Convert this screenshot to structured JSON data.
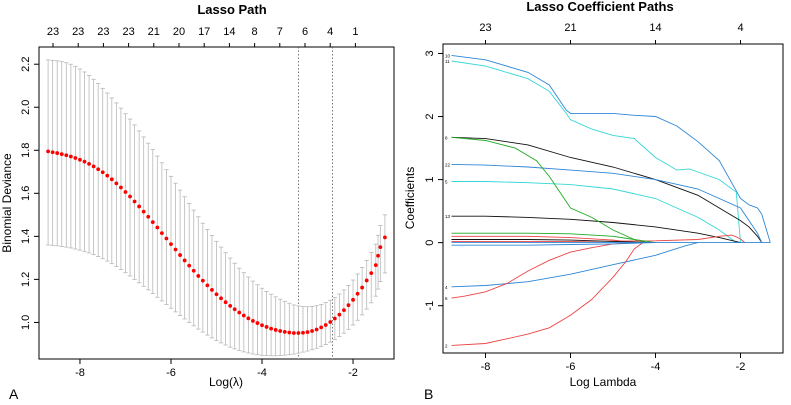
{
  "panels": {
    "a_letter": "A",
    "b_letter": "B"
  },
  "chart_data": [
    {
      "type": "scatter",
      "title": "Lasso Path",
      "xlabel": "Log(λ)",
      "ylabel": "Binomial Deviance",
      "xlim": [
        -8.9,
        -1.1
      ],
      "ylim": [
        0.83,
        2.28
      ],
      "xticks": [
        -8,
        -6,
        -4,
        -2
      ],
      "xtick_labels": [
        "-8",
        "-6",
        "-4",
        "-2"
      ],
      "yticks": [
        1.0,
        1.2,
        1.4,
        1.6,
        1.8,
        2.0,
        2.2
      ],
      "ytick_labels": [
        "1.0",
        "1.2",
        "1.4",
        "1.6",
        "1.8",
        "2.0",
        "2.2"
      ],
      "top_axis_labels": [
        "23",
        "23",
        "23",
        "23",
        "21",
        "20",
        "17",
        "14",
        "8",
        "7",
        "6",
        "4",
        "1"
      ],
      "top_axis_x": [
        -8.65,
        -7.85,
        -7.05,
        -6.3,
        -5.55,
        -4.85,
        -4.05,
        -3.35,
        -2.65,
        -2.0,
        -1.35,
        -0.75,
        -0.15
      ],
      "vlines": [
        -3.2,
        -2.45
      ],
      "point_color": "#ff0000",
      "errorbar_color": "#b8b8b8",
      "points": [
        {
          "x": -8.7,
          "y": 1.795,
          "lo": 1.36,
          "hi": 2.22
        },
        {
          "x": -8.6,
          "y": 1.791,
          "lo": 1.358,
          "hi": 2.218
        },
        {
          "x": -8.5,
          "y": 1.787,
          "lo": 1.356,
          "hi": 2.216
        },
        {
          "x": -8.4,
          "y": 1.782,
          "lo": 1.353,
          "hi": 2.212
        },
        {
          "x": -8.3,
          "y": 1.777,
          "lo": 1.35,
          "hi": 2.207
        },
        {
          "x": -8.2,
          "y": 1.771,
          "lo": 1.346,
          "hi": 2.2
        },
        {
          "x": -8.1,
          "y": 1.764,
          "lo": 1.341,
          "hi": 2.19
        },
        {
          "x": -8.0,
          "y": 1.756,
          "lo": 1.336,
          "hi": 2.178
        },
        {
          "x": -7.9,
          "y": 1.747,
          "lo": 1.33,
          "hi": 2.164
        },
        {
          "x": -7.8,
          "y": 1.737,
          "lo": 1.323,
          "hi": 2.148
        },
        {
          "x": -7.7,
          "y": 1.725,
          "lo": 1.315,
          "hi": 2.13
        },
        {
          "x": -7.6,
          "y": 1.712,
          "lo": 1.306,
          "hi": 2.11
        },
        {
          "x": -7.5,
          "y": 1.698,
          "lo": 1.296,
          "hi": 2.088
        },
        {
          "x": -7.4,
          "y": 1.682,
          "lo": 1.285,
          "hi": 2.066
        },
        {
          "x": -7.3,
          "y": 1.665,
          "lo": 1.273,
          "hi": 2.043
        },
        {
          "x": -7.2,
          "y": 1.646,
          "lo": 1.26,
          "hi": 2.02
        },
        {
          "x": -7.1,
          "y": 1.627,
          "lo": 1.246,
          "hi": 1.996
        },
        {
          "x": -7.0,
          "y": 1.606,
          "lo": 1.231,
          "hi": 1.97
        },
        {
          "x": -6.9,
          "y": 1.585,
          "lo": 1.216,
          "hi": 1.945
        },
        {
          "x": -6.8,
          "y": 1.562,
          "lo": 1.2,
          "hi": 1.918
        },
        {
          "x": -6.7,
          "y": 1.539,
          "lo": 1.184,
          "hi": 1.89
        },
        {
          "x": -6.6,
          "y": 1.515,
          "lo": 1.168,
          "hi": 1.862
        },
        {
          "x": -6.5,
          "y": 1.491,
          "lo": 1.151,
          "hi": 1.833
        },
        {
          "x": -6.4,
          "y": 1.466,
          "lo": 1.134,
          "hi": 1.803
        },
        {
          "x": -6.3,
          "y": 1.441,
          "lo": 1.117,
          "hi": 1.773
        },
        {
          "x": -6.2,
          "y": 1.415,
          "lo": 1.1,
          "hi": 1.742
        },
        {
          "x": -6.1,
          "y": 1.39,
          "lo": 1.083,
          "hi": 1.71
        },
        {
          "x": -6.0,
          "y": 1.364,
          "lo": 1.066,
          "hi": 1.679
        },
        {
          "x": -5.9,
          "y": 1.339,
          "lo": 1.049,
          "hi": 1.647
        },
        {
          "x": -5.8,
          "y": 1.313,
          "lo": 1.032,
          "hi": 1.615
        },
        {
          "x": -5.7,
          "y": 1.288,
          "lo": 1.016,
          "hi": 1.584
        },
        {
          "x": -5.6,
          "y": 1.264,
          "lo": 1.0,
          "hi": 1.553
        },
        {
          "x": -5.5,
          "y": 1.24,
          "lo": 0.984,
          "hi": 1.522
        },
        {
          "x": -5.4,
          "y": 1.216,
          "lo": 0.969,
          "hi": 1.491
        },
        {
          "x": -5.3,
          "y": 1.194,
          "lo": 0.955,
          "hi": 1.461
        },
        {
          "x": -5.2,
          "y": 1.172,
          "lo": 0.941,
          "hi": 1.432
        },
        {
          "x": -5.1,
          "y": 1.151,
          "lo": 0.928,
          "hi": 1.404
        },
        {
          "x": -5.0,
          "y": 1.131,
          "lo": 0.916,
          "hi": 1.377
        },
        {
          "x": -4.9,
          "y": 1.112,
          "lo": 0.905,
          "hi": 1.35
        },
        {
          "x": -4.8,
          "y": 1.094,
          "lo": 0.895,
          "hi": 1.324
        },
        {
          "x": -4.7,
          "y": 1.077,
          "lo": 0.885,
          "hi": 1.299
        },
        {
          "x": -4.6,
          "y": 1.061,
          "lo": 0.877,
          "hi": 1.275
        },
        {
          "x": -4.5,
          "y": 1.046,
          "lo": 0.87,
          "hi": 1.252
        },
        {
          "x": -4.4,
          "y": 1.032,
          "lo": 0.863,
          "hi": 1.231
        },
        {
          "x": -4.3,
          "y": 1.019,
          "lo": 0.858,
          "hi": 1.211
        },
        {
          "x": -4.2,
          "y": 1.007,
          "lo": 0.853,
          "hi": 1.192
        },
        {
          "x": -4.1,
          "y": 0.997,
          "lo": 0.85,
          "hi": 1.175
        },
        {
          "x": -4.0,
          "y": 0.987,
          "lo": 0.847,
          "hi": 1.159
        },
        {
          "x": -3.9,
          "y": 0.979,
          "lo": 0.846,
          "hi": 1.144
        },
        {
          "x": -3.8,
          "y": 0.971,
          "lo": 0.845,
          "hi": 1.131
        },
        {
          "x": -3.7,
          "y": 0.965,
          "lo": 0.845,
          "hi": 1.119
        },
        {
          "x": -3.6,
          "y": 0.96,
          "lo": 0.846,
          "hi": 1.108
        },
        {
          "x": -3.5,
          "y": 0.956,
          "lo": 0.848,
          "hi": 1.098
        },
        {
          "x": -3.4,
          "y": 0.953,
          "lo": 0.85,
          "hi": 1.089
        },
        {
          "x": -3.3,
          "y": 0.951,
          "lo": 0.853,
          "hi": 1.081
        },
        {
          "x": -3.2,
          "y": 0.951,
          "lo": 0.857,
          "hi": 1.077
        },
        {
          "x": -3.1,
          "y": 0.952,
          "lo": 0.862,
          "hi": 1.074
        },
        {
          "x": -3.0,
          "y": 0.955,
          "lo": 0.867,
          "hi": 1.073
        },
        {
          "x": -2.9,
          "y": 0.96,
          "lo": 0.873,
          "hi": 1.074
        },
        {
          "x": -2.8,
          "y": 0.967,
          "lo": 0.88,
          "hi": 1.078
        },
        {
          "x": -2.7,
          "y": 0.977,
          "lo": 0.888,
          "hi": 1.084
        },
        {
          "x": -2.6,
          "y": 0.988,
          "lo": 0.897,
          "hi": 1.092
        },
        {
          "x": -2.5,
          "y": 1.002,
          "lo": 0.908,
          "hi": 1.103
        },
        {
          "x": -2.4,
          "y": 1.018,
          "lo": 0.92,
          "hi": 1.116
        },
        {
          "x": -2.3,
          "y": 1.036,
          "lo": 0.934,
          "hi": 1.132
        },
        {
          "x": -2.2,
          "y": 1.057,
          "lo": 0.95,
          "hi": 1.151
        },
        {
          "x": -2.1,
          "y": 1.08,
          "lo": 0.968,
          "hi": 1.172
        },
        {
          "x": -2.0,
          "y": 1.105,
          "lo": 0.988,
          "hi": 1.197
        },
        {
          "x": -1.9,
          "y": 1.133,
          "lo": 1.01,
          "hi": 1.225
        },
        {
          "x": -1.8,
          "y": 1.162,
          "lo": 1.035,
          "hi": 1.255
        },
        {
          "x": -1.7,
          "y": 1.195,
          "lo": 1.062,
          "hi": 1.288
        },
        {
          "x": -1.6,
          "y": 1.229,
          "lo": 1.091,
          "hi": 1.325
        },
        {
          "x": -1.5,
          "y": 1.266,
          "lo": 1.122,
          "hi": 1.364
        },
        {
          "x": -1.45,
          "y": 1.31,
          "lo": 1.155,
          "hi": 1.405
        },
        {
          "x": -1.4,
          "y": 1.35,
          "lo": 1.19,
          "hi": 1.45
        },
        {
          "x": -1.3,
          "y": 1.395,
          "lo": 1.23,
          "hi": 1.5
        }
      ]
    },
    {
      "type": "line",
      "title": "Lasso Coefficient Paths",
      "xlabel": "Log Lambda",
      "ylabel": "Coefficients",
      "xlim": [
        -9.0,
        -1.0
      ],
      "ylim": [
        -1.75,
        3.15
      ],
      "xticks": [
        -8,
        -6,
        -4,
        -2
      ],
      "xtick_labels": [
        "-8",
        "-6",
        "-4",
        "-2"
      ],
      "yticks": [
        -1,
        0,
        1,
        2,
        3
      ],
      "ytick_labels": [
        "-1",
        "0",
        "1",
        "2",
        "3"
      ],
      "top_axis_labels": [
        "23",
        "21",
        "14",
        "4"
      ],
      "top_axis_x": [
        -8.0,
        -6.0,
        -4.0,
        -2.0
      ],
      "series": [
        {
          "name": "10",
          "color": "#2e86d6",
          "x": [
            -8.8,
            -8,
            -7,
            -6.5,
            -6.1,
            -6,
            -5,
            -4.5,
            -4,
            -3.5,
            -3,
            -2.5,
            -2,
            -1.8,
            -1.6,
            -1.5,
            -1.3
          ],
          "y": [
            2.97,
            2.9,
            2.7,
            2.5,
            2.1,
            2.05,
            2.05,
            2.02,
            2.0,
            1.85,
            1.6,
            1.3,
            0.7,
            0.6,
            0.55,
            0.45,
            0.0
          ]
        },
        {
          "name": "11",
          "color": "#34d6d6",
          "x": [
            -8.8,
            -8,
            -7,
            -6.5,
            -6.1,
            -6,
            -5.5,
            -5,
            -4.5,
            -4,
            -3.5,
            -3.2,
            -3,
            -2.5,
            -2.1,
            -2
          ],
          "y": [
            2.88,
            2.8,
            2.6,
            2.4,
            2.05,
            1.95,
            1.8,
            1.7,
            1.65,
            1.35,
            1.15,
            1.17,
            1.12,
            1.0,
            0.8,
            0.0
          ]
        },
        {
          "name": "8",
          "color": "#111111",
          "x": [
            -8.8,
            -8,
            -7,
            -6,
            -5,
            -4,
            -3,
            -2.5,
            -2,
            -1.8,
            -1.6,
            -1.5
          ],
          "y": [
            1.67,
            1.65,
            1.55,
            1.35,
            1.2,
            1.0,
            0.75,
            0.55,
            0.35,
            0.25,
            0.1,
            0.0
          ]
        },
        {
          "name": "22",
          "color": "#2e86d6",
          "x": [
            -8.8,
            -8,
            -7,
            -6,
            -5,
            -4,
            -3,
            -2,
            -1.6,
            -1.5
          ],
          "y": [
            1.24,
            1.23,
            1.2,
            1.15,
            1.1,
            1.0,
            0.85,
            0.55,
            0.15,
            0.0
          ]
        },
        {
          "name": "5",
          "color": "#34d6d6",
          "x": [
            -8.8,
            -8,
            -7,
            -6,
            -5,
            -4,
            -3.5,
            -3,
            -2.5,
            -2.1
          ],
          "y": [
            0.97,
            0.97,
            0.95,
            0.92,
            0.85,
            0.7,
            0.55,
            0.4,
            0.2,
            0.0
          ]
        },
        {
          "name": "13",
          "color": "#111111",
          "x": [
            -8.8,
            -8,
            -7,
            -6,
            -5,
            -4,
            -3,
            -2.5,
            -2
          ],
          "y": [
            0.42,
            0.42,
            0.4,
            0.37,
            0.32,
            0.25,
            0.15,
            0.08,
            0.0
          ]
        },
        {
          "name": "",
          "color": "#22aa22",
          "x": [
            -8.8,
            -8,
            -7.3,
            -6.8,
            -6.5,
            -6.2,
            -6,
            -5.5,
            -5,
            -4.5,
            -4.2
          ],
          "y": [
            1.67,
            1.62,
            1.5,
            1.3,
            1.05,
            0.75,
            0.55,
            0.4,
            0.2,
            0.05,
            0.0
          ]
        },
        {
          "name": "4",
          "color": "#2e86d6",
          "x": [
            -8.8,
            -8,
            -7,
            -6,
            -5,
            -4,
            -3.3,
            -3
          ],
          "y": [
            -0.7,
            -0.68,
            -0.62,
            -0.5,
            -0.35,
            -0.2,
            -0.05,
            0.0
          ]
        },
        {
          "name": "6",
          "color": "#ee4444",
          "x": [
            -8.8,
            -8.5,
            -8,
            -7.5,
            -7,
            -6.5,
            -6,
            -5.5,
            -5,
            -4.5
          ],
          "y": [
            -0.88,
            -0.85,
            -0.78,
            -0.65,
            -0.45,
            -0.28,
            -0.15,
            -0.08,
            -0.02,
            0.0
          ]
        },
        {
          "name": "2",
          "color": "#ee4444",
          "x": [
            -8.8,
            -8,
            -7,
            -6.5,
            -6,
            -5.5,
            -5,
            -4.7,
            -4.5,
            -4.3,
            -4
          ],
          "y": [
            -1.63,
            -1.6,
            -1.45,
            -1.35,
            -1.15,
            -0.9,
            -0.55,
            -0.3,
            -0.1,
            0.0,
            0.0
          ]
        },
        {
          "name": "",
          "color": "#ee4444",
          "x": [
            -8.8,
            -6,
            -4,
            -3,
            -2.5,
            -2.2,
            -2,
            -1.9
          ],
          "y": [
            0.02,
            0.02,
            0.03,
            0.05,
            0.1,
            0.12,
            0.06,
            0.0
          ]
        },
        {
          "name": "",
          "color": "#22aa22",
          "x": [
            -8.8,
            -7,
            -6,
            -5,
            -4.5,
            -4
          ],
          "y": [
            0.15,
            0.15,
            0.14,
            0.1,
            0.05,
            0.0
          ]
        },
        {
          "name": "",
          "color": "#ee4444",
          "x": [
            -8.8,
            -7,
            -6,
            -5,
            -4.5
          ],
          "y": [
            0.1,
            0.1,
            0.08,
            0.04,
            0.0
          ]
        },
        {
          "name": "",
          "color": "#111111",
          "x": [
            -8.8,
            -7,
            -6,
            -5,
            -4
          ],
          "y": [
            0.05,
            0.05,
            0.04,
            0.02,
            0.0
          ]
        },
        {
          "name": "",
          "color": "#2e86d6",
          "x": [
            -8.8,
            -7,
            -6,
            -5,
            -4
          ],
          "y": [
            -0.04,
            -0.04,
            -0.03,
            -0.02,
            0.0
          ]
        },
        {
          "name": "",
          "color": "#2e86d6",
          "x": [
            -8.8,
            -1.3
          ],
          "y": [
            0.0,
            0.0
          ]
        }
      ]
    }
  ]
}
